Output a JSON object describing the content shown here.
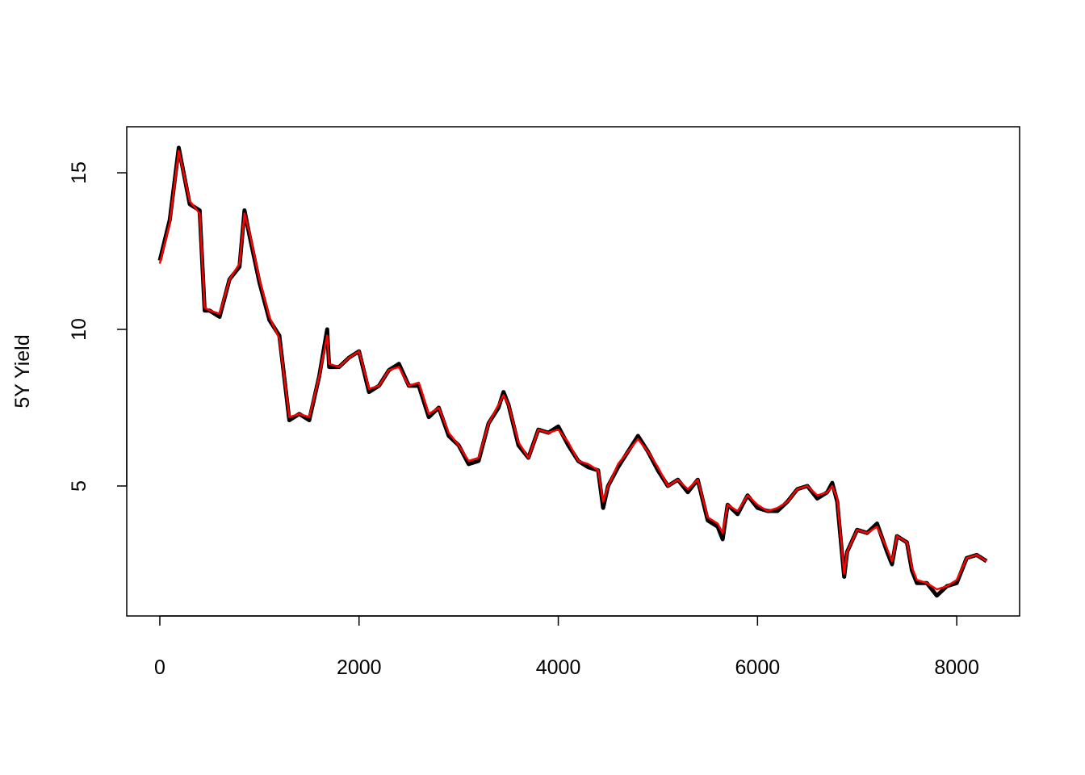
{
  "chart_data": {
    "type": "line",
    "y_label": "5Y Yield",
    "x": [
      0,
      100,
      190,
      300,
      400,
      450,
      500,
      600,
      700,
      800,
      850,
      900,
      1000,
      1100,
      1200,
      1300,
      1400,
      1500,
      1600,
      1680,
      1700,
      1800,
      1900,
      2000,
      2100,
      2200,
      2300,
      2400,
      2500,
      2600,
      2700,
      2800,
      2900,
      3000,
      3100,
      3200,
      3300,
      3400,
      3450,
      3500,
      3600,
      3700,
      3800,
      3900,
      4000,
      4100,
      4200,
      4300,
      4400,
      4450,
      4500,
      4600,
      4700,
      4800,
      4900,
      5000,
      5100,
      5200,
      5300,
      5400,
      5500,
      5600,
      5650,
      5700,
      5800,
      5900,
      6000,
      6100,
      6200,
      6300,
      6400,
      6500,
      6600,
      6700,
      6750,
      6800,
      6870,
      6900,
      7000,
      7100,
      7200,
      7300,
      7350,
      7400,
      7500,
      7550,
      7600,
      7700,
      7800,
      7900,
      8000,
      8100,
      8200,
      8299
    ],
    "series": [
      {
        "color": "#000000",
        "values": [
          12.2,
          13.5,
          15.8,
          14.0,
          13.8,
          10.6,
          10.6,
          10.4,
          11.6,
          12.0,
          13.8,
          13.0,
          11.5,
          10.3,
          9.8,
          7.1,
          7.3,
          7.1,
          8.5,
          10.0,
          8.8,
          8.8,
          9.1,
          9.3,
          8.0,
          8.2,
          8.7,
          8.9,
          8.2,
          8.2,
          7.2,
          7.5,
          6.6,
          6.3,
          5.7,
          5.8,
          7.0,
          7.5,
          8.0,
          7.6,
          6.3,
          5.9,
          6.8,
          6.7,
          6.9,
          6.3,
          5.8,
          5.6,
          5.5,
          4.3,
          5.0,
          5.6,
          6.1,
          6.6,
          6.1,
          5.5,
          5.0,
          5.2,
          4.8,
          5.2,
          3.9,
          3.7,
          3.3,
          4.4,
          4.1,
          4.7,
          4.3,
          4.2,
          4.2,
          4.5,
          4.9,
          5.0,
          4.6,
          4.8,
          5.1,
          4.5,
          2.1,
          2.9,
          3.6,
          3.5,
          3.8,
          2.9,
          2.5,
          3.4,
          3.2,
          2.3,
          1.9,
          1.9,
          1.5,
          1.8,
          1.9,
          2.7,
          2.8,
          2.6
        ]
      },
      {
        "color": "#ff0000",
        "values": [
          12.1,
          13.4,
          15.7,
          14.1,
          13.7,
          10.7,
          10.6,
          10.5,
          11.6,
          12.1,
          13.7,
          13.1,
          11.6,
          10.4,
          9.7,
          7.2,
          7.3,
          7.2,
          8.5,
          9.8,
          8.9,
          8.8,
          9.1,
          9.3,
          8.1,
          8.2,
          8.7,
          8.8,
          8.2,
          8.3,
          7.3,
          7.5,
          6.7,
          6.3,
          5.8,
          5.9,
          7.0,
          7.6,
          7.9,
          7.6,
          6.4,
          5.9,
          6.8,
          6.7,
          6.8,
          6.4,
          5.8,
          5.7,
          5.5,
          4.5,
          5.0,
          5.7,
          6.1,
          6.5,
          6.1,
          5.6,
          5.0,
          5.2,
          4.9,
          5.2,
          4.0,
          3.8,
          3.5,
          4.4,
          4.2,
          4.7,
          4.4,
          4.2,
          4.3,
          4.5,
          4.9,
          5.0,
          4.7,
          4.8,
          5.0,
          4.6,
          2.2,
          2.9,
          3.6,
          3.5,
          3.7,
          3.0,
          2.6,
          3.4,
          3.2,
          2.4,
          2.0,
          1.9,
          1.7,
          1.8,
          2.0,
          2.7,
          2.8,
          2.6
        ]
      }
    ],
    "xlim": [
      -332,
      8631
    ],
    "ylim": [
      0.85,
      16.47
    ],
    "xticks": [
      0,
      2000,
      4000,
      6000,
      8000
    ],
    "yticks": [
      5,
      10,
      15
    ]
  }
}
